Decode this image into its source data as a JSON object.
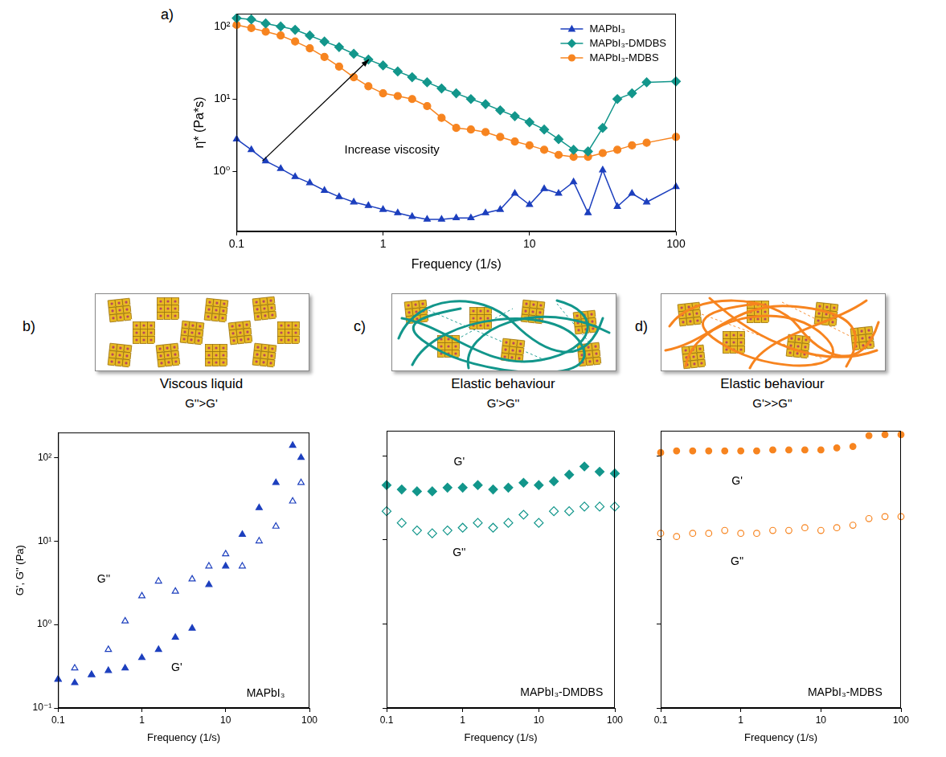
{
  "chart_data": [
    {
      "type": "line",
      "panel_label": "a)",
      "x": [
        0.1,
        0.126,
        0.158,
        0.2,
        0.251,
        0.316,
        0.398,
        0.501,
        0.631,
        0.794,
        1,
        1.26,
        1.58,
        2,
        2.51,
        3.16,
        3.98,
        5.01,
        6.31,
        7.94,
        10,
        12.6,
        15.8,
        20,
        25.1,
        31.6,
        39.8,
        50.1,
        63.1,
        100
      ],
      "series": [
        {
          "name": "MAPbI₃",
          "color": "#1c3fbe",
          "marker": "triangle",
          "line_style": "solid",
          "values": [
            2.8,
            2.0,
            1.4,
            1.1,
            0.85,
            0.7,
            0.55,
            0.45,
            0.38,
            0.34,
            0.3,
            0.27,
            0.24,
            0.22,
            0.22,
            0.23,
            0.23,
            0.27,
            0.3,
            0.5,
            0.35,
            0.58,
            0.5,
            0.72,
            0.27,
            1.05,
            0.33,
            0.5,
            0.38,
            0.62
          ]
        },
        {
          "name": "MAPbI₃-DMDBS",
          "color": "#12968b",
          "marker": "diamond",
          "line_style": "solid",
          "values": [
            130,
            125,
            110,
            100,
            90,
            75,
            62,
            52,
            42,
            35,
            29,
            24,
            20,
            17,
            14,
            12,
            10,
            8.5,
            7,
            5.8,
            4.8,
            3.8,
            2.8,
            2.0,
            1.9,
            4,
            10,
            12,
            17,
            17.5
          ]
        },
        {
          "name": "MAPbI₃-MDBS",
          "color": "#f7841f",
          "marker": "circle",
          "line_style": "solid",
          "values": [
            105,
            95,
            85,
            75,
            62,
            50,
            38,
            28,
            20,
            15,
            12,
            11,
            10,
            8,
            5.5,
            4,
            3.8,
            3.5,
            3,
            2.6,
            2.3,
            2.0,
            1.7,
            1.6,
            1.6,
            1.8,
            2.0,
            2.3,
            2.5,
            3.0
          ]
        }
      ],
      "xlabel": "Frequency (1/s)",
      "ylabel": "η* (Pa*s)",
      "xlim": [
        0.1,
        100
      ],
      "ylim": [
        0.15,
        150
      ],
      "xticks": [
        0.1,
        1,
        10,
        100
      ],
      "yticks": [
        {
          "value": 1,
          "label": "10⁰"
        },
        {
          "value": 10,
          "label": "10¹"
        },
        {
          "value": 100,
          "label": "10²"
        }
      ],
      "log": true,
      "grid": false,
      "legend": "upper right",
      "annotations": [
        {
          "text": "Increase viscosity",
          "x": 1.15,
          "y": 2.0,
          "arrow": {
            "from": [
              0.15,
              1.4
            ],
            "to": [
              0.8,
              35
            ]
          }
        }
      ]
    },
    {
      "type": "scatter",
      "panel_label": "b)",
      "title": "Viscous liquid",
      "subtitle": "G''>G'",
      "x": [
        0.1,
        0.158,
        0.251,
        0.398,
        0.631,
        1,
        1.58,
        2.51,
        3.98,
        6.31,
        10,
        15.8,
        25.1,
        39.8,
        63.1,
        79.4
      ],
      "series": [
        {
          "color": "#1c3fbe",
          "marker": "triangle",
          "values": [
            0.22,
            0.2,
            0.25,
            0.28,
            0.3,
            0.4,
            0.5,
            0.7,
            0.9,
            3.0,
            5.0,
            12,
            25,
            50,
            140,
            100
          ]
        },
        {
          "color": "#1c3fbe",
          "marker": "triangle-open",
          "values": [
            0.22,
            0.3,
            0.25,
            0.5,
            1.1,
            2.2,
            3.3,
            2.5,
            3.5,
            5.0,
            7.0,
            5.0,
            10,
            15,
            30,
            50
          ]
        }
      ],
      "xlabel": "Frequency (1/s)",
      "ylabel": "G', G'' (Pa)",
      "xlim": [
        0.1,
        100
      ],
      "ylim": [
        0.1,
        200
      ],
      "xticks": [
        0.1,
        1,
        10,
        100
      ],
      "yticks": [
        {
          "value": 0.1,
          "label": "10⁻¹"
        },
        {
          "value": 1,
          "label": "10⁰"
        },
        {
          "value": 10,
          "label": "10¹"
        },
        {
          "value": 100,
          "label": "10²"
        }
      ],
      "log": true,
      "grid": false,
      "annotations": [
        {
          "text": "G''",
          "x": 0.35,
          "y": 3.5
        },
        {
          "text": "G'",
          "x": 2.6,
          "y": 0.3
        },
        {
          "text": "MAPbI₃",
          "x": 30,
          "y": 0.15
        }
      ]
    },
    {
      "type": "scatter",
      "panel_label": "c)",
      "title": "Elastic behaviour",
      "subtitle": "G'>G''",
      "x": [
        0.1,
        0.158,
        0.251,
        0.398,
        0.631,
        1,
        1.58,
        2.51,
        3.98,
        6.31,
        10,
        15.8,
        25.1,
        39.8,
        63.1,
        100
      ],
      "series": [
        {
          "color": "#12968b",
          "marker": "diamond",
          "values": [
            45,
            40,
            38,
            38,
            42,
            42,
            45,
            40,
            42,
            48,
            45,
            50,
            60,
            75,
            65,
            62
          ]
        },
        {
          "color": "#12968b",
          "marker": "diamond-open",
          "values": [
            22,
            16,
            13,
            12,
            13,
            14,
            16,
            14,
            16,
            20,
            16,
            22,
            22,
            25,
            25,
            25
          ]
        }
      ],
      "xlabel": "Frequency (1/s)",
      "xlim": [
        0.1,
        100
      ],
      "ylim": [
        0.1,
        200
      ],
      "xticks": [
        0.1,
        1,
        10,
        100
      ],
      "yticks": [
        0.1,
        1,
        10,
        100
      ],
      "log": true,
      "grid": false,
      "tick_labels": "x",
      "annotations": [
        {
          "text": "G'",
          "x": 0.9,
          "y": 85
        },
        {
          "text": "G''",
          "x": 0.9,
          "y": 7
        },
        {
          "text": "MAPbI₃-DMDBS",
          "x": 20,
          "y": 0.15
        }
      ]
    },
    {
      "type": "scatter",
      "panel_label": "d)",
      "title": "Elastic behaviour",
      "subtitle": "G'>>G''",
      "x": [
        0.1,
        0.158,
        0.251,
        0.398,
        0.631,
        1,
        1.58,
        2.51,
        3.98,
        6.31,
        10,
        15.8,
        25.1,
        39.8,
        63.1,
        100
      ],
      "series": [
        {
          "color": "#f7841f",
          "marker": "circle",
          "values": [
            110,
            115,
            115,
            115,
            115,
            115,
            115,
            118,
            118,
            118,
            118,
            125,
            130,
            175,
            180,
            180
          ]
        },
        {
          "color": "#f7841f",
          "marker": "circle-open",
          "values": [
            12,
            11,
            12,
            12,
            13,
            12,
            12,
            13,
            13,
            14,
            13,
            14,
            15,
            18,
            19,
            19
          ]
        }
      ],
      "xlabel": "Frequency (1/s)",
      "xlim": [
        0.1,
        100
      ],
      "ylim": [
        0.1,
        200
      ],
      "xticks": [
        0.1,
        1,
        10,
        100
      ],
      "yticks": [
        0.1,
        1,
        10,
        100
      ],
      "log": true,
      "grid": false,
      "tick_labels": "x",
      "annotations": [
        {
          "text": "G'",
          "x": 0.9,
          "y": 50
        },
        {
          "text": "G''",
          "x": 0.9,
          "y": 5.5
        },
        {
          "text": "MAPbI₃-MDBS",
          "x": 20,
          "y": 0.15
        }
      ]
    }
  ]
}
